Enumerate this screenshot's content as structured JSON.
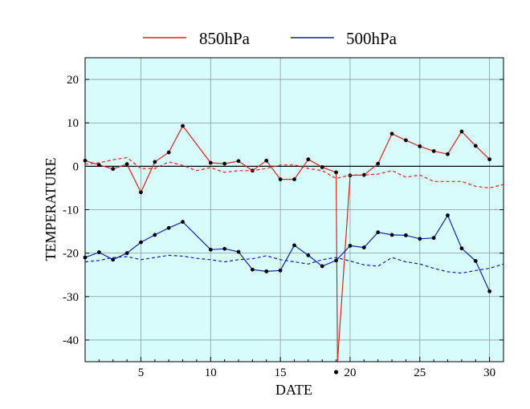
{
  "chart_data": {
    "type": "line",
    "xlabel": "DATE",
    "ylabel": "TEMPERATURE",
    "xlim": [
      1,
      31
    ],
    "ylim": [
      -45,
      25
    ],
    "x_ticks": [
      5,
      10,
      15,
      20,
      25,
      30
    ],
    "x_tick_labels": [
      "5",
      "10",
      "15",
      "20",
      "25",
      "30"
    ],
    "y_ticks": [
      -40,
      -30,
      -20,
      -10,
      0,
      10,
      20
    ],
    "y_tick_labels": [
      "-40",
      "-30",
      "-20",
      "-10",
      "0",
      "10",
      "20"
    ],
    "grid": true,
    "zero_line": true,
    "marker_day": 19,
    "plot_background": "#d8fcfc",
    "legend": {
      "position": "top",
      "entries": [
        {
          "label": "850hPa",
          "color": "#dd2222"
        },
        {
          "label": "500hPa",
          "color": "#1122aa"
        }
      ]
    },
    "series": [
      {
        "name": "850hPa",
        "color": "#dd2222",
        "style": "solid",
        "markers": true,
        "x": [
          1,
          2,
          3,
          4,
          5,
          6,
          7,
          8,
          10,
          11,
          12,
          13,
          14,
          15,
          16,
          17,
          18,
          19,
          19.1,
          20,
          21,
          22,
          23,
          24,
          25,
          26,
          27,
          28,
          29,
          30
        ],
        "values": [
          1.3,
          0.3,
          -0.6,
          0.5,
          -6,
          1,
          3.2,
          9.3,
          0.8,
          0.6,
          1.2,
          -1,
          1.3,
          -3,
          -3,
          1.6,
          -0.2,
          -1.4,
          -45,
          -2.1,
          -2,
          0.6,
          7.5,
          6,
          4.6,
          3.5,
          2.8,
          8,
          4.7,
          1.6
        ],
        "marked": [
          true,
          true,
          true,
          true,
          true,
          true,
          true,
          true,
          true,
          true,
          true,
          true,
          true,
          true,
          true,
          true,
          true,
          true,
          false,
          true,
          true,
          true,
          true,
          true,
          true,
          true,
          true,
          true,
          true,
          true
        ]
      },
      {
        "name": "850hPa-normal",
        "color": "#dd2222",
        "style": "dashed",
        "markers": false,
        "x": [
          1,
          2,
          3,
          4,
          5,
          6,
          7,
          8,
          9,
          10,
          11,
          12,
          13,
          14,
          15,
          16,
          17,
          18,
          19,
          20,
          21,
          22,
          23,
          24,
          25,
          26,
          27,
          28,
          29,
          30,
          31
        ],
        "values": [
          0.5,
          0.8,
          1.5,
          2,
          -0.5,
          -0.5,
          1,
          0.2,
          -1,
          -0.3,
          -1.4,
          -1,
          -1,
          -0.5,
          0.3,
          0.3,
          -0.5,
          -1,
          -2.8,
          -2,
          -2,
          -1.8,
          -1,
          -2.5,
          -2,
          -3.5,
          -3.5,
          -3.5,
          -4.6,
          -5,
          -4.2
        ]
      },
      {
        "name": "500hPa",
        "color": "#1122aa",
        "style": "solid",
        "markers": true,
        "x": [
          1,
          2,
          3,
          4,
          5,
          6,
          7,
          8,
          10,
          11,
          12,
          13,
          14,
          15,
          16,
          17,
          18,
          19,
          20,
          21,
          22,
          23,
          24,
          25,
          26,
          27,
          28,
          29,
          30
        ],
        "values": [
          -21,
          -19.8,
          -21.5,
          -20,
          -17.5,
          -15.8,
          -14.2,
          -12.8,
          -19.2,
          -19,
          -19.7,
          -23.8,
          -24.2,
          -24,
          -18.2,
          -20.5,
          -23,
          -21.7,
          -18.3,
          -18.7,
          -15.2,
          -15.8,
          -15.9,
          -16.7,
          -16.5,
          -11.3,
          -18.9,
          -21.8,
          -28.8
        ]
      },
      {
        "name": "500hPa-normal",
        "color": "#1122aa",
        "style": "dashed",
        "markers": false,
        "x": [
          1,
          2,
          3,
          4,
          5,
          6,
          7,
          8,
          9,
          10,
          11,
          12,
          13,
          14,
          15,
          16,
          17,
          18,
          19,
          20,
          21,
          22,
          23,
          24,
          25,
          26,
          27,
          28,
          29,
          30,
          31
        ],
        "values": [
          -22,
          -21.7,
          -21,
          -20.8,
          -21.5,
          -21,
          -20.5,
          -20.7,
          -21.2,
          -21.5,
          -22,
          -21.5,
          -21.3,
          -20.6,
          -21.5,
          -22,
          -22.5,
          -21.5,
          -21,
          -21.8,
          -22.7,
          -23,
          -21,
          -22,
          -22.5,
          -23.5,
          -24.3,
          -24.6,
          -24,
          -23.5,
          -22.5
        ]
      }
    ]
  }
}
